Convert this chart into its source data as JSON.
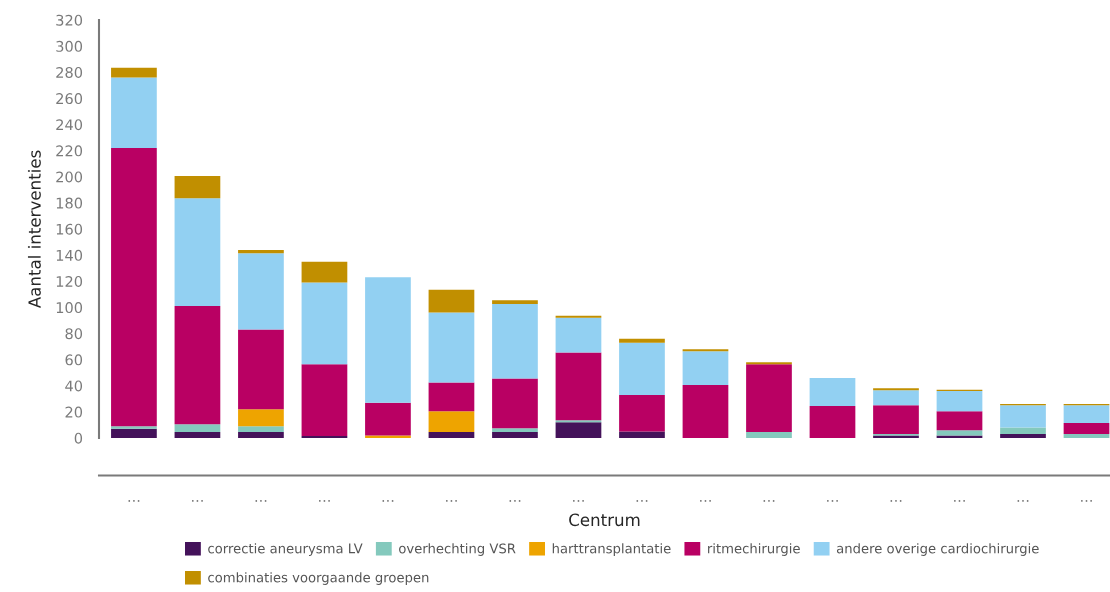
{
  "chart_data": {
    "type": "bar",
    "stacked": true,
    "xlabel": "Centrum",
    "ylabel": "Aantal interventies",
    "categories": [
      "...",
      "...",
      "...",
      "...",
      "...",
      "...",
      "...",
      "...",
      "...",
      "...",
      "...",
      "...",
      "...",
      "...",
      "...",
      "..."
    ],
    "ylim": [
      0,
      320
    ],
    "yticks": [
      0,
      20,
      40,
      60,
      80,
      100,
      120,
      140,
      160,
      180,
      200,
      220,
      240,
      260,
      280,
      300,
      320
    ],
    "grid": false,
    "legend": "bottom",
    "series": [
      {
        "name": "correctie aneurysma LV",
        "color": "#44125a",
        "values": [
          7,
          4.5,
          4.5,
          1.5,
          0,
          4.5,
          4.5,
          12,
          5,
          0,
          0,
          0,
          2,
          2,
          3,
          0
        ]
      },
      {
        "name": "overhechting VSR",
        "color": "#84c9bd",
        "values": [
          2,
          6,
          4.5,
          0,
          0,
          0,
          3,
          1.5,
          0,
          0,
          4.5,
          0,
          1,
          4,
          5,
          3
        ]
      },
      {
        "name": "harttransplantatie",
        "color": "#eea400",
        "values": [
          0,
          0,
          13,
          0,
          2,
          16,
          0,
          0,
          0,
          0,
          0,
          0,
          0,
          0,
          0,
          0
        ]
      },
      {
        "name": "ritmechirurgie",
        "color": "#b90063",
        "values": [
          213,
          90.5,
          61,
          55,
          25,
          22,
          38,
          52,
          28,
          40.5,
          52,
          24.5,
          22,
          14.5,
          0,
          8.5
        ]
      },
      {
        "name": "andere overige cardiochirurgie",
        "color": "#92d0f2",
        "values": [
          54,
          82.5,
          58.5,
          62.5,
          96,
          53.5,
          57,
          26.5,
          40,
          26,
          0,
          21.5,
          11.5,
          15.5,
          17,
          13.5
        ]
      },
      {
        "name": "combinaties voorgaande groepen",
        "color": "#c18f00",
        "values": [
          7.5,
          17,
          2.5,
          16,
          0,
          17.5,
          3,
          1.5,
          3,
          1.5,
          1.5,
          0,
          1.5,
          1,
          1,
          1
        ]
      }
    ]
  }
}
